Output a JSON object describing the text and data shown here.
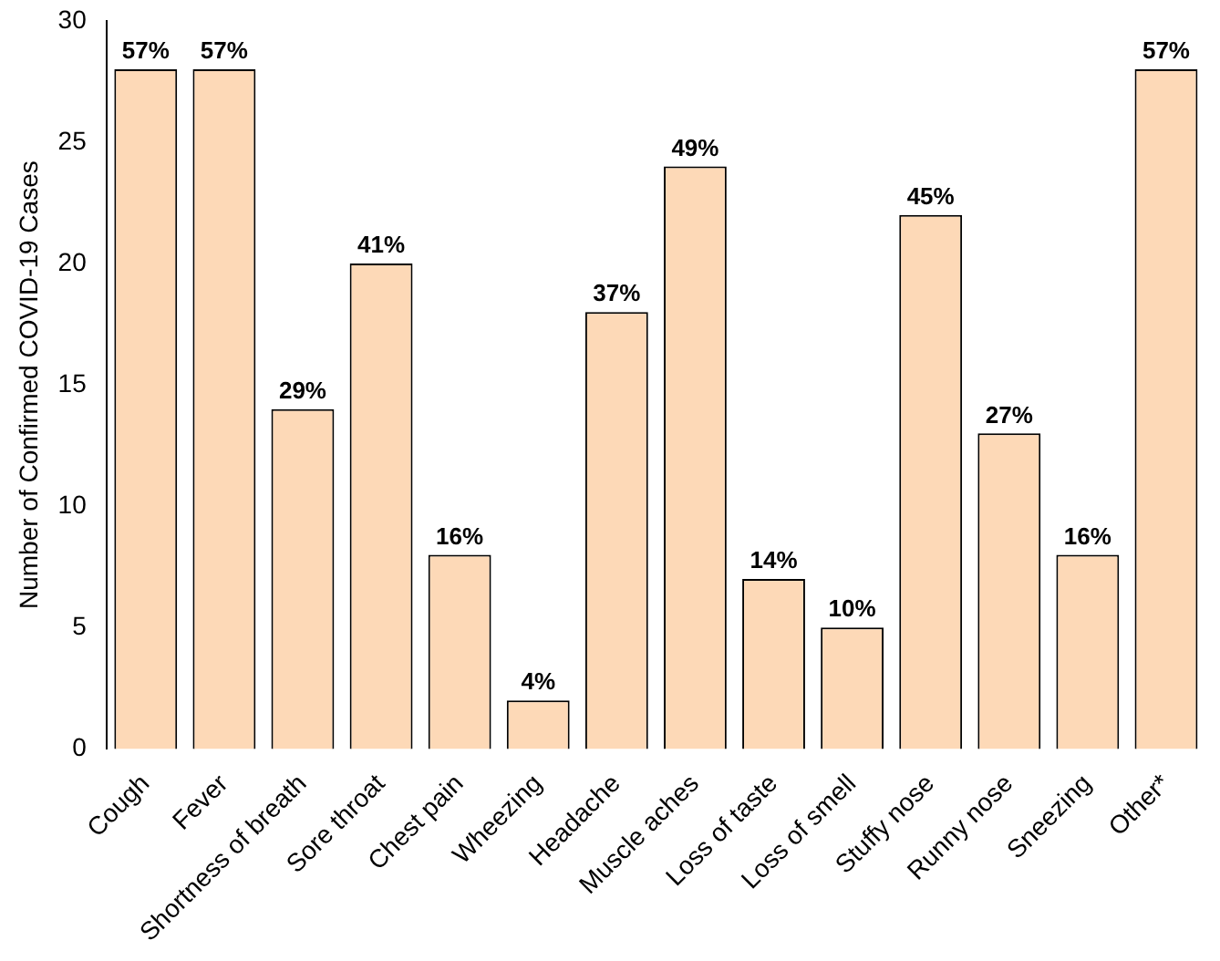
{
  "chart_data": {
    "type": "bar",
    "ylabel": "Number of Confirmed COVID-19 Cases",
    "categories": [
      "Cough",
      "Fever",
      "Shortness of breath",
      "Sore throat",
      "Chest pain",
      "Wheezing",
      "Headache",
      "Muscle aches",
      "Loss of taste",
      "Loss of smell",
      "Stuffy nose",
      "Runny nose",
      "Sneezing",
      "Other*"
    ],
    "values": [
      28,
      28,
      14,
      20,
      8,
      2,
      18,
      24,
      7,
      5,
      22,
      13,
      8,
      28
    ],
    "annotations": [
      {
        "text": "57%",
        "x": "Cough",
        "y": 28
      },
      {
        "text": "57%",
        "x": "Fever",
        "y": 28
      },
      {
        "text": "29%",
        "x": "Shortness of breath",
        "y": 14
      },
      {
        "text": "41%",
        "x": "Sore throat",
        "y": 20
      },
      {
        "text": "16%",
        "x": "Chest pain",
        "y": 8
      },
      {
        "text": "4%",
        "x": "Wheezing",
        "y": 2
      },
      {
        "text": "37%",
        "x": "Headache",
        "y": 18
      },
      {
        "text": "49%",
        "x": "Muscle aches",
        "y": 24
      },
      {
        "text": "14%",
        "x": "Loss of taste",
        "y": 7
      },
      {
        "text": "10%",
        "x": "Loss of smell",
        "y": 5
      },
      {
        "text": "45%",
        "x": "Stuffy nose",
        "y": 22
      },
      {
        "text": "27%",
        "x": "Runny nose",
        "y": 13
      },
      {
        "text": "16%",
        "x": "Sneezing",
        "y": 8
      },
      {
        "text": "57%",
        "x": "Other*",
        "y": 28
      }
    ],
    "color": "#fdd9b7",
    "ylim": [
      0,
      30
    ],
    "yticks": [
      0,
      5,
      10,
      15,
      20,
      25,
      30
    ],
    "grid": false,
    "legend": false
  }
}
